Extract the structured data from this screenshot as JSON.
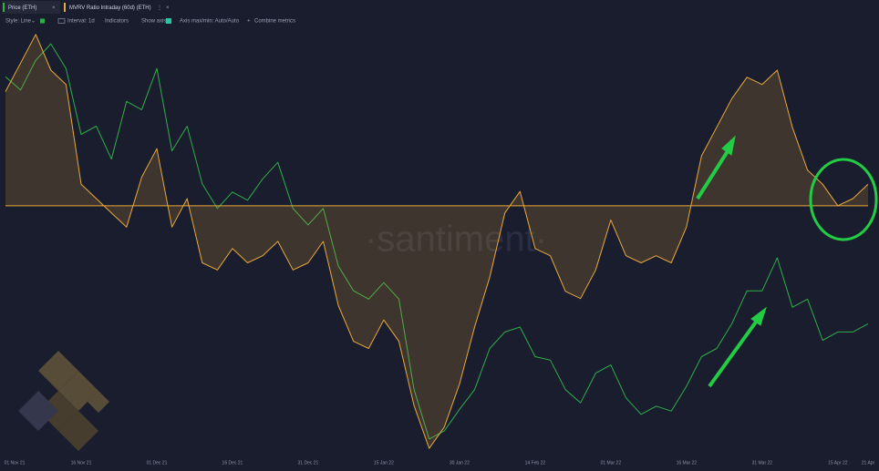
{
  "toolbar": {
    "style": "Style: Line",
    "interval": "Interval: 1d",
    "indicators": "Indicators",
    "show_axis": "Show axis",
    "axis_range": "Axis max/min: Auto/Auto",
    "combine": "Combine metrics"
  },
  "watermark": "·santiment·",
  "chart_data": {
    "type": "line",
    "categories": [
      "01 Nov 21",
      null,
      null,
      null,
      null,
      "16 Nov 21",
      null,
      null,
      null,
      null,
      "01 Dec 21",
      null,
      null,
      null,
      null,
      "16 Dec 21",
      null,
      null,
      null,
      null,
      "31 Dec 21",
      null,
      null,
      null,
      null,
      "15 Jan 22",
      null,
      null,
      null,
      null,
      "30 Jan 22",
      null,
      null,
      null,
      null,
      "14 Feb 22",
      null,
      null,
      null,
      null,
      "01 Mar 22",
      null,
      null,
      null,
      null,
      "16 Mar 22",
      null,
      null,
      null,
      null,
      "31 Mar 22",
      null,
      null,
      null,
      null,
      "15 Apr 22",
      null,
      "21 Apr"
    ],
    "series": [
      {
        "name": "Price (ETH)",
        "color": "#2fae49",
        "axis": "y",
        "values": [
          4600,
          4520,
          4700,
          4800,
          4650,
          4250,
          4300,
          4100,
          4450,
          4400,
          4650,
          4150,
          4300,
          3950,
          3800,
          3900,
          3850,
          3980,
          4080,
          3800,
          3700,
          3800,
          3450,
          3300,
          3250,
          3350,
          3250,
          2700,
          2400,
          2450,
          2580,
          2700,
          2950,
          3050,
          3080,
          2900,
          2880,
          2700,
          2620,
          2800,
          2850,
          2650,
          2550,
          2600,
          2570,
          2720,
          2900,
          2950,
          3100,
          3300,
          3300,
          3500,
          3200,
          3250,
          3000,
          3050,
          3050,
          3100
        ]
      },
      {
        "name": "MVRV Ratio Intraday (60d) (ETH)",
        "color": "#e8a93c",
        "axis": "y2",
        "area": true,
        "values": [
          16,
          20,
          24,
          19,
          17,
          3,
          1,
          -1,
          -3,
          4,
          8,
          -3,
          1,
          -8,
          -9,
          -6,
          -8,
          -7,
          -5,
          -9,
          -8,
          -5,
          -14,
          -19,
          -20,
          -16,
          -19,
          -28,
          -34,
          -31,
          -25,
          -17,
          -10,
          -1,
          2,
          -6,
          -7,
          -12,
          -13,
          -9,
          -2,
          -7,
          -8,
          -7,
          -8,
          -3,
          7,
          11,
          15,
          18,
          17,
          19,
          11,
          5,
          3,
          0,
          1,
          3
        ]
      }
    ],
    "ylim": [
      2300,
      4900
    ],
    "y2lim": [
      -35,
      25
    ],
    "grid": false
  }
}
